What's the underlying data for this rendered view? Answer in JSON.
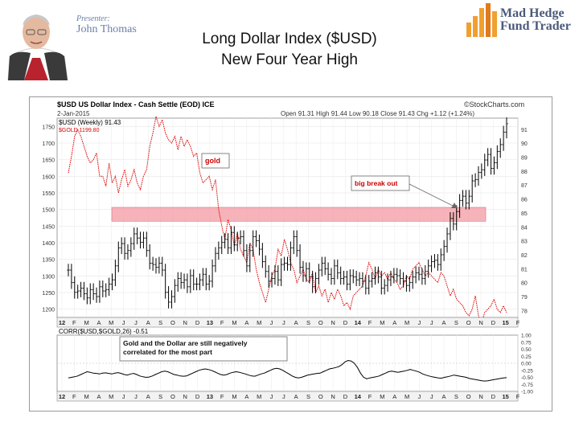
{
  "header": {
    "presenter_label": "Presenter:",
    "presenter_name": "John Thomas",
    "logo_line1": "Mad Hedge",
    "logo_line2": "Fund Trader",
    "title_line1": "Long Dollar Index ($USD)",
    "title_line2": "New Four Year High"
  },
  "colors": {
    "usd_bars": "#000000",
    "gold_line": "#dd0000",
    "highlight_band": "#f4a0a8",
    "annotation_text": "#cc0000",
    "logo_orange": "#f0a030"
  },
  "chart_data": [
    {
      "type": "line",
      "title": "$USD US Dollar Index - Cash Settle (EOD) ICE",
      "subtitle": "2-Jan-2015",
      "stats": "Open 91.31 High 91.44 Low 90.18 Close 91.43 Chg +1.12 (+1.24%)",
      "watermark": "©StockCharts.com",
      "legend": [
        "$USD (Weekly) 91.43",
        "$GOLD 1199.80"
      ],
      "x_ticks": [
        "12",
        "F",
        "M",
        "A",
        "M",
        "J",
        "J",
        "A",
        "S",
        "O",
        "N",
        "D",
        "13",
        "F",
        "M",
        "A",
        "M",
        "J",
        "J",
        "A",
        "S",
        "O",
        "N",
        "D",
        "14",
        "F",
        "M",
        "A",
        "M",
        "J",
        "J",
        "A",
        "S",
        "O",
        "N",
        "D",
        "15",
        "F"
      ],
      "y_left_ticks": [
        "1750",
        "1700",
        "1650",
        "1600",
        "1550",
        "1500",
        "1450",
        "1400",
        "1350",
        "1300",
        "1250",
        "1200"
      ],
      "y_right_ticks": [
        "91",
        "90",
        "89",
        "88",
        "87",
        "86",
        "85",
        "84",
        "83",
        "82",
        "81",
        "80",
        "79",
        "78"
      ],
      "annotations": [
        "gold",
        "big break out"
      ],
      "series": [
        {
          "name": "$USD (Weekly) 91.43",
          "style": "ohlc-bars",
          "axis": "right",
          "values": [
            80.9,
            80.0,
            79.3,
            79.4,
            79.6,
            79.2,
            78.9,
            79.5,
            79.2,
            79.0,
            79.7,
            79.4,
            79.5,
            79.9,
            80.2,
            81.2,
            82.5,
            82.8,
            82.1,
            82.3,
            82.8,
            83.5,
            83.2,
            82.9,
            83.2,
            82.3,
            81.4,
            81.3,
            81.1,
            81.4,
            80.9,
            79.3,
            78.6,
            79.0,
            79.8,
            80.3,
            80.0,
            80.2,
            79.7,
            80.5,
            79.9,
            79.9,
            80.2,
            80.6,
            79.9,
            80.1,
            81.2,
            82.1,
            82.5,
            82.9,
            83.1,
            82.5,
            83.6,
            82.7,
            83.2,
            83.3,
            82.3,
            81.2,
            82.3,
            83.3,
            83.0,
            82.4,
            81.5,
            80.8,
            80.1,
            80.3,
            80.8,
            80.2,
            81.3,
            81.4,
            81.3,
            82.5,
            83.3,
            82.3,
            81.1,
            80.5,
            81.0,
            80.4,
            79.7,
            80.3,
            80.9,
            81.4,
            81.0,
            80.6,
            80.3,
            81.2,
            80.7,
            80.3,
            80.4,
            79.9,
            80.5,
            80.4,
            80.2,
            80.3,
            80.1,
            79.6,
            80.1,
            80.3,
            80.7,
            80.4,
            79.6,
            79.8,
            80.2,
            80.4,
            80.6,
            80.5,
            80.3,
            80.1,
            79.8,
            80.0,
            80.4,
            80.7,
            80.6,
            80.3,
            80.8,
            81.2,
            81.5,
            81.6,
            81.3,
            82.0,
            82.6,
            83.5,
            84.6,
            84.2,
            85.1,
            85.9,
            86.2,
            85.7,
            86.2,
            87.3,
            87.4,
            87.9,
            88.1,
            88.8,
            89.2,
            88.2,
            88.6,
            89.4,
            89.9,
            90.8,
            91.4
          ]
        },
        {
          "name": "$GOLD 1199.80",
          "style": "line",
          "axis": "left",
          "values": [
            1610,
            1660,
            1720,
            1740,
            1720,
            1690,
            1660,
            1640,
            1650,
            1670,
            1600,
            1600,
            1570,
            1640,
            1580,
            1600,
            1550,
            1590,
            1620,
            1570,
            1590,
            1620,
            1580,
            1560,
            1600,
            1620,
            1690,
            1730,
            1780,
            1750,
            1770,
            1730,
            1710,
            1700,
            1720,
            1680,
            1720,
            1690,
            1710,
            1690,
            1660,
            1670,
            1610,
            1580,
            1590,
            1600,
            1560,
            1590,
            1500,
            1450,
            1410,
            1470,
            1440,
            1390,
            1430,
            1380,
            1360,
            1340,
            1400,
            1380,
            1320,
            1280,
            1250,
            1220,
            1260,
            1300,
            1320,
            1380,
            1360,
            1410,
            1380,
            1340,
            1320,
            1280,
            1300,
            1320,
            1290,
            1280,
            1310,
            1250,
            1270,
            1240,
            1260,
            1220,
            1250,
            1230,
            1260,
            1240,
            1210,
            1220,
            1200,
            1240,
            1250,
            1260,
            1270,
            1300,
            1340,
            1320,
            1290,
            1320,
            1300,
            1310,
            1290,
            1310,
            1290,
            1280,
            1260,
            1270,
            1300,
            1290,
            1320,
            1330,
            1340,
            1320,
            1300,
            1310,
            1300,
            1290,
            1280,
            1310,
            1300,
            1270,
            1240,
            1260,
            1230,
            1220,
            1210,
            1190,
            1180,
            1200,
            1240,
            1180,
            1160,
            1190,
            1200,
            1210,
            1230,
            1200,
            1190,
            1210,
            1190
          ]
        }
      ],
      "y_left_range": [
        1175,
        1775
      ],
      "y_right_range": [
        77.5,
        91.8
      ],
      "highlight_band_right_units": [
        84.4,
        85.4
      ]
    },
    {
      "type": "line",
      "title": "CORR($USD,$GOLD,26) -0.51",
      "annotation": "Gold and the Dollar are still negatively correlated for the most part",
      "y_ticks": [
        "1.00",
        "0.75",
        "0.50",
        "0.25",
        "0.00",
        "-0.25",
        "-0.50",
        "-0.75",
        "-1.00"
      ],
      "x_ticks": [
        "12",
        "F",
        "M",
        "A",
        "M",
        "J",
        "J",
        "A",
        "S",
        "O",
        "N",
        "D",
        "13",
        "F",
        "M",
        "A",
        "M",
        "J",
        "J",
        "A",
        "S",
        "O",
        "N",
        "D",
        "14",
        "F",
        "M",
        "A",
        "M",
        "J",
        "J",
        "A",
        "S",
        "O",
        "N",
        "D",
        "15",
        "F"
      ],
      "ylim": [
        -1.0,
        1.0
      ],
      "series": [
        {
          "name": "",
          "values": [
            -0.52,
            -0.5,
            -0.48,
            -0.45,
            -0.4,
            -0.35,
            -0.3,
            -0.32,
            -0.35,
            -0.36,
            -0.38,
            -0.35,
            -0.34,
            -0.36,
            -0.38,
            -0.35,
            -0.33,
            -0.36,
            -0.4,
            -0.42,
            -0.38,
            -0.36,
            -0.4,
            -0.45,
            -0.48,
            -0.5,
            -0.49,
            -0.45,
            -0.4,
            -0.35,
            -0.3,
            -0.28,
            -0.3,
            -0.35,
            -0.4,
            -0.42,
            -0.45,
            -0.46,
            -0.45,
            -0.4,
            -0.35,
            -0.3,
            -0.25,
            -0.22,
            -0.2,
            -0.22,
            -0.25,
            -0.3,
            -0.35,
            -0.4,
            -0.42,
            -0.4,
            -0.35,
            -0.32,
            -0.3,
            -0.32,
            -0.35,
            -0.38,
            -0.42,
            -0.45,
            -0.46,
            -0.42,
            -0.38,
            -0.35,
            -0.3,
            -0.25,
            -0.2,
            -0.18,
            -0.2,
            -0.25,
            -0.32,
            -0.38,
            -0.45,
            -0.5,
            -0.52,
            -0.5,
            -0.46,
            -0.42,
            -0.4,
            -0.38,
            -0.36,
            -0.35,
            -0.3,
            -0.25,
            -0.2,
            -0.18,
            -0.15,
            -0.12,
            -0.05,
            0.05,
            0.1,
            0.08,
            0.0,
            -0.15,
            -0.35,
            -0.5,
            -0.55,
            -0.52,
            -0.5,
            -0.48,
            -0.45,
            -0.4,
            -0.35,
            -0.3,
            -0.28,
            -0.3,
            -0.32,
            -0.3,
            -0.28,
            -0.25,
            -0.22,
            -0.25,
            -0.28,
            -0.32,
            -0.38,
            -0.42,
            -0.45,
            -0.48,
            -0.5,
            -0.52,
            -0.53,
            -0.5,
            -0.48,
            -0.45,
            -0.42,
            -0.44,
            -0.46,
            -0.48,
            -0.5,
            -0.54,
            -0.56,
            -0.58,
            -0.6,
            -0.62,
            -0.63,
            -0.62,
            -0.6,
            -0.58,
            -0.56,
            -0.54,
            -0.52,
            -0.51
          ]
        }
      ]
    }
  ]
}
